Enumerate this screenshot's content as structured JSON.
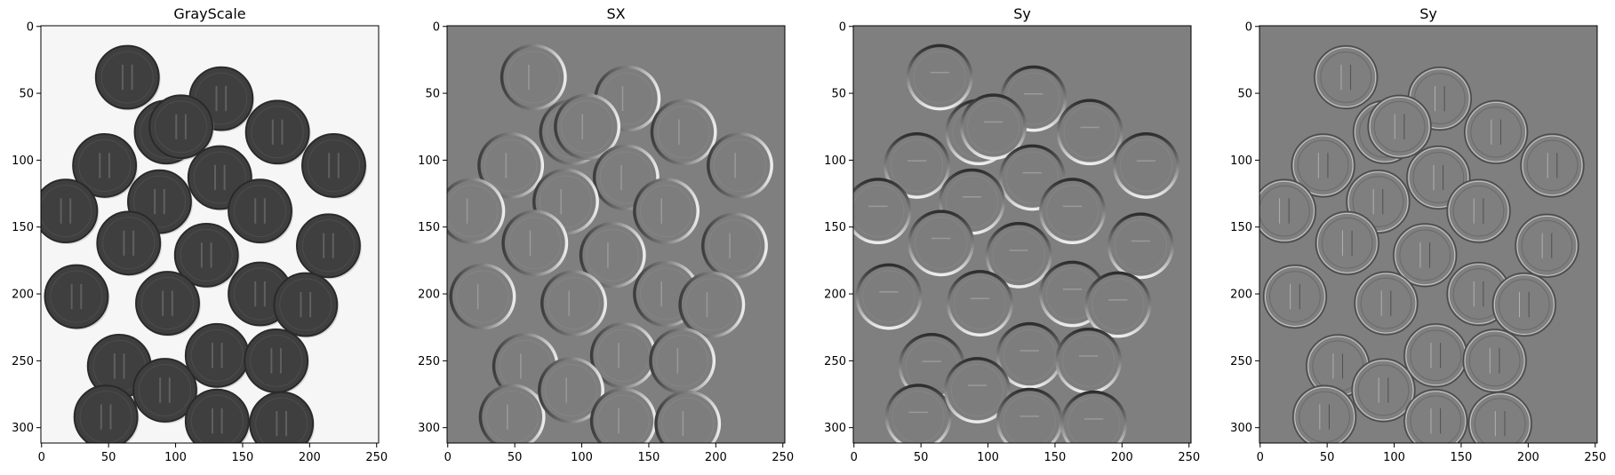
{
  "figure": {
    "panels": [
      {
        "id": "grayscale",
        "title": "GrayScale",
        "background": "#f6f6f6",
        "coin_fill": "#3f3f3f",
        "coin_stroke": "#2a2a2a",
        "style": "gray"
      },
      {
        "id": "sx",
        "title": "SX",
        "background": "#7f7f7f",
        "coin_fill": "#7d7d7d",
        "style": "sobel_x"
      },
      {
        "id": "sy",
        "title": "Sy",
        "background": "#7f7f7f",
        "coin_fill": "#7d7d7d",
        "style": "sobel_y"
      },
      {
        "id": "sy2",
        "title": "Sy",
        "background": "#7f7f7f",
        "coin_fill": "#7f7f7f",
        "style": "laplacian"
      }
    ],
    "x_ticks": [
      "0",
      "50",
      "100",
      "150",
      "200",
      "250"
    ],
    "y_ticks": [
      "0",
      "50",
      "100",
      "150",
      "200",
      "250",
      "300"
    ]
  },
  "chart_data": [
    {
      "type": "heatmap",
      "title": "GrayScale",
      "xlim": [
        -0.5,
        251.5
      ],
      "ylim": [
        311.5,
        -0.5
      ],
      "x_ticks": [
        0,
        50,
        100,
        150,
        200,
        250
      ],
      "y_ticks": [
        0,
        50,
        100,
        150,
        200,
        250,
        300
      ]
    },
    {
      "type": "heatmap",
      "title": "SX",
      "xlim": [
        -0.5,
        251.5
      ],
      "ylim": [
        311.5,
        -0.5
      ],
      "x_ticks": [
        0,
        50,
        100,
        150,
        200,
        250
      ],
      "y_ticks": [
        0,
        50,
        100,
        150,
        200,
        250,
        300
      ]
    },
    {
      "type": "heatmap",
      "title": "Sy",
      "xlim": [
        -0.5,
        251.5
      ],
      "ylim": [
        311.5,
        -0.5
      ],
      "x_ticks": [
        0,
        50,
        100,
        150,
        200,
        250
      ],
      "y_ticks": [
        0,
        50,
        100,
        150,
        200,
        250,
        300
      ]
    },
    {
      "type": "heatmap",
      "title": "Sy",
      "xlim": [
        -0.5,
        251.5
      ],
      "ylim": [
        311.5,
        -0.5
      ],
      "x_ticks": [
        0,
        50,
        100,
        150,
        200,
        250
      ],
      "y_ticks": [
        0,
        50,
        100,
        150,
        200,
        250,
        300
      ]
    }
  ],
  "coins": [
    [
      64,
      38
    ],
    [
      134,
      54
    ],
    [
      93,
      79
    ],
    [
      104,
      75
    ],
    [
      176,
      79
    ],
    [
      218,
      104
    ],
    [
      47,
      104
    ],
    [
      133,
      113
    ],
    [
      88,
      131
    ],
    [
      163,
      138
    ],
    [
      18,
      138
    ],
    [
      65,
      162
    ],
    [
      214,
      164
    ],
    [
      123,
      171
    ],
    [
      26,
      202
    ],
    [
      94,
      207
    ],
    [
      163,
      200
    ],
    [
      197,
      208
    ],
    [
      58,
      254
    ],
    [
      131,
      246
    ],
    [
      175,
      250
    ],
    [
      48,
      292
    ],
    [
      92,
      272
    ],
    [
      131,
      295
    ],
    [
      179,
      297
    ]
  ]
}
